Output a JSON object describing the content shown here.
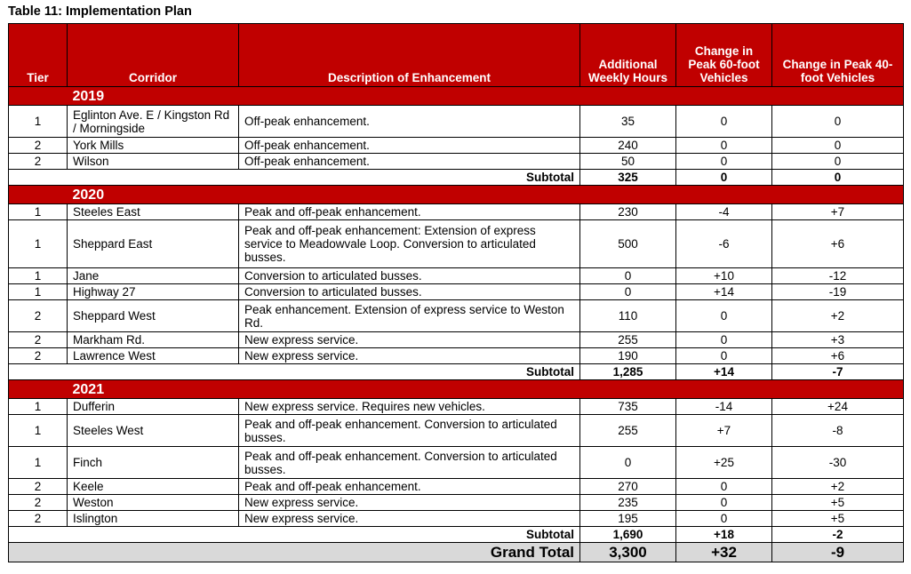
{
  "title": "Table 11: Implementation Plan",
  "headers": [
    "Tier",
    "Corridor",
    "Description of Enhancement",
    "Additional Weekly Hours",
    "Change in Peak 60-foot Vehicles",
    "Change in Peak 40-foot Vehicles"
  ],
  "colors": {
    "header_bg": "#c00000",
    "grand_total_bg": "#d9d9d9"
  },
  "sections": [
    {
      "year": "2019",
      "rows": [
        {
          "tier": "1",
          "corridor": "Eglinton Ave. E / Kingston Rd / Morningside",
          "description": "Off-peak enhancement.",
          "hours": "35",
          "peak60": "0",
          "peak40": "0",
          "lines": 2
        },
        {
          "tier": "2",
          "corridor": "York Mills",
          "description": "Off-peak enhancement.",
          "hours": "240",
          "peak60": "0",
          "peak40": "0",
          "lines": 1
        },
        {
          "tier": "2",
          "corridor": "Wilson",
          "description": "Off-peak enhancement.",
          "hours": "50",
          "peak60": "0",
          "peak40": "0",
          "lines": 1
        }
      ],
      "subtotal": {
        "label": "Subtotal",
        "hours": "325",
        "peak60": "0",
        "peak40": "0"
      }
    },
    {
      "year": "2020",
      "rows": [
        {
          "tier": "1",
          "corridor": "Steeles East",
          "description": "Peak and off-peak enhancement.",
          "hours": "230",
          "peak60": "-4",
          "peak40": "+7",
          "lines": 1
        },
        {
          "tier": "1",
          "corridor": "Sheppard East",
          "description": "Peak and off-peak enhancement: Extension of express service to Meadowvale Loop. Conversion to articulated busses.",
          "hours": "500",
          "peak60": "-6",
          "peak40": "+6",
          "lines": 3
        },
        {
          "tier": "1",
          "corridor": "Jane",
          "description": "Conversion to articulated busses.",
          "hours": "0",
          "peak60": "+10",
          "peak40": "-12",
          "lines": 1
        },
        {
          "tier": "1",
          "corridor": "Highway 27",
          "description": "Conversion to articulated busses.",
          "hours": "0",
          "peak60": "+14",
          "peak40": "-19",
          "lines": 1
        },
        {
          "tier": "2",
          "corridor": "Sheppard West",
          "description": "Peak enhancement. Extension of express service to Weston Rd.",
          "hours": "110",
          "peak60": "0",
          "peak40": "+2",
          "lines": 2
        },
        {
          "tier": "2",
          "corridor": "Markham Rd.",
          "description": "New express service.",
          "hours": "255",
          "peak60": "0",
          "peak40": "+3",
          "lines": 1
        },
        {
          "tier": "2",
          "corridor": "Lawrence West",
          "description": "New express service.",
          "hours": "190",
          "peak60": "0",
          "peak40": "+6",
          "lines": 1
        }
      ],
      "subtotal": {
        "label": "Subtotal",
        "hours": "1,285",
        "peak60": "+14",
        "peak40": "-7"
      }
    },
    {
      "year": "2021",
      "rows": [
        {
          "tier": "1",
          "corridor": "Dufferin",
          "description": "New express service. Requires new vehicles.",
          "hours": "735",
          "peak60": "-14",
          "peak40": "+24",
          "lines": 1
        },
        {
          "tier": "1",
          "corridor": "Steeles West",
          "description": "Peak and off-peak enhancement. Conversion to articulated busses.",
          "hours": "255",
          "peak60": "+7",
          "peak40": "-8",
          "lines": 2
        },
        {
          "tier": "1",
          "corridor": "Finch",
          "description": "Peak and off-peak enhancement. Conversion to articulated busses.",
          "hours": "0",
          "peak60": "+25",
          "peak40": "-30",
          "lines": 2
        },
        {
          "tier": "2",
          "corridor": "Keele",
          "description": "Peak and off-peak enhancement.",
          "hours": "270",
          "peak60": "0",
          "peak40": "+2",
          "lines": 1
        },
        {
          "tier": "2",
          "corridor": "Weston",
          "description": "New express service.",
          "hours": "235",
          "peak60": "0",
          "peak40": "+5",
          "lines": 1
        },
        {
          "tier": "2",
          "corridor": "Islington",
          "description": "New express service.",
          "hours": "195",
          "peak60": "0",
          "peak40": "+5",
          "lines": 1
        }
      ],
      "subtotal": {
        "label": "Subtotal",
        "hours": "1,690",
        "peak60": "+18",
        "peak40": "-2"
      }
    }
  ],
  "grand_total": {
    "label": "Grand Total",
    "hours": "3,300",
    "peak60": "+32",
    "peak40": "-9"
  }
}
